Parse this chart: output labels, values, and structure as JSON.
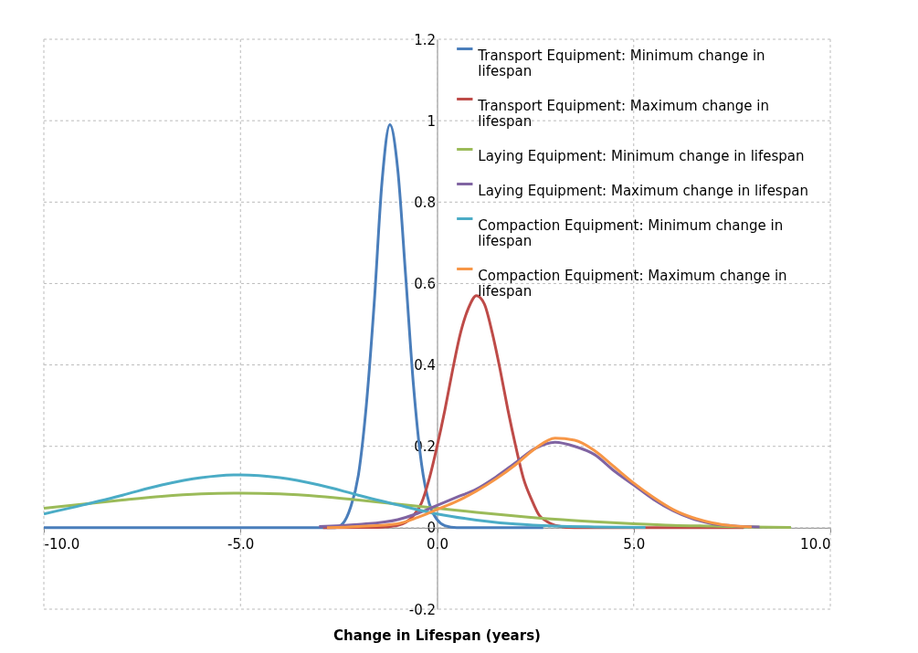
{
  "chart_data": {
    "type": "line",
    "xlabel": "Change in Lifespan (years)",
    "xlim": [
      -10,
      10
    ],
    "ylim": [
      -0.2,
      1.2
    ],
    "xticks": [
      {
        "value": -10,
        "label": "-10.0"
      },
      {
        "value": -5,
        "label": "-5.0"
      },
      {
        "value": 0,
        "label": "0.0"
      },
      {
        "value": 5,
        "label": "5.0"
      },
      {
        "value": 10,
        "label": "10.0"
      }
    ],
    "yticks": [
      -0.2,
      0,
      0.2,
      0.4,
      0.6,
      0.8,
      1,
      1.2
    ],
    "grid": true,
    "legend": "top right",
    "series": [
      {
        "name": "Transport Equipment: Minimum change in lifespan",
        "color": "#4a7ebb",
        "x": [
          -10,
          -3,
          -2.6,
          -2.4,
          -2.2,
          -2.0,
          -1.8,
          -1.6,
          -1.4,
          -1.2,
          -1.0,
          -0.8,
          -0.6,
          -0.4,
          -0.2,
          0,
          0.2,
          0.5,
          2.7
        ],
        "values": [
          0,
          0,
          0,
          0.01,
          0.05,
          0.13,
          0.3,
          0.55,
          0.85,
          0.99,
          0.88,
          0.62,
          0.35,
          0.16,
          0.06,
          0.02,
          0.005,
          0,
          0
        ]
      },
      {
        "name": "Transport Equipment: Maximum change in lifespan",
        "color": "#be4b48",
        "x": [
          -2.9,
          -1.5,
          -1,
          -0.6,
          -0.4,
          -0.2,
          0,
          0.2,
          0.4,
          0.6,
          0.8,
          1.0,
          1.2,
          1.4,
          1.6,
          1.8,
          2.0,
          2.2,
          2.4,
          2.6,
          2.8,
          3.0,
          3.5,
          7.8
        ],
        "values": [
          0,
          0.001,
          0.006,
          0.03,
          0.06,
          0.12,
          0.2,
          0.29,
          0.39,
          0.48,
          0.54,
          0.57,
          0.55,
          0.48,
          0.39,
          0.29,
          0.2,
          0.12,
          0.07,
          0.03,
          0.015,
          0.006,
          0,
          0
        ]
      },
      {
        "name": "Laying Equipment: Minimum change in lifespan",
        "color": "#9bbb59",
        "x": [
          -10,
          -9,
          -8,
          -7,
          -6,
          -5,
          -4,
          -3,
          -2,
          -1,
          0,
          1,
          2,
          3,
          4,
          5,
          6,
          7,
          8,
          9
        ],
        "values": [
          0.048,
          0.058,
          0.068,
          0.077,
          0.083,
          0.085,
          0.083,
          0.077,
          0.068,
          0.058,
          0.048,
          0.038,
          0.029,
          0.021,
          0.015,
          0.01,
          0.006,
          0.004,
          0.002,
          0.001
        ]
      },
      {
        "name": "Laying Equipment: Maximum change in lifespan",
        "color": "#8064a2",
        "x": [
          -3,
          -2,
          -1,
          -0.5,
          0,
          0.5,
          1,
          1.5,
          2,
          2.5,
          3,
          3.5,
          4,
          4.5,
          5,
          5.5,
          6,
          6.5,
          7,
          7.5,
          8.2
        ],
        "values": [
          0.003,
          0.008,
          0.02,
          0.035,
          0.055,
          0.075,
          0.095,
          0.125,
          0.16,
          0.195,
          0.21,
          0.2,
          0.18,
          0.14,
          0.105,
          0.07,
          0.042,
          0.022,
          0.01,
          0.005,
          0.002
        ]
      },
      {
        "name": "Compaction Equipment: Minimum change in lifespan",
        "color": "#4bacc6",
        "x": [
          -10,
          -9,
          -8,
          -7,
          -6,
          -5,
          -4,
          -3,
          -2,
          -1,
          0,
          1,
          2,
          3,
          4,
          5.3
        ],
        "values": [
          0.034,
          0.056,
          0.08,
          0.105,
          0.123,
          0.13,
          0.123,
          0.105,
          0.08,
          0.056,
          0.034,
          0.019,
          0.009,
          0.004,
          0.002,
          0.001
        ]
      },
      {
        "name": "Compaction Equipment: Maximum change in lifespan",
        "color": "#f79646",
        "x": [
          -2.8,
          -2,
          -1,
          -0.5,
          0,
          0.5,
          1,
          1.5,
          2,
          2.5,
          3,
          3.5,
          4,
          4.5,
          5,
          5.5,
          6,
          6.5,
          7,
          7.5,
          8
        ],
        "values": [
          0,
          0.003,
          0.01,
          0.025,
          0.045,
          0.065,
          0.09,
          0.12,
          0.155,
          0.195,
          0.22,
          0.215,
          0.19,
          0.15,
          0.11,
          0.075,
          0.045,
          0.025,
          0.012,
          0.005,
          0.002
        ]
      }
    ]
  }
}
